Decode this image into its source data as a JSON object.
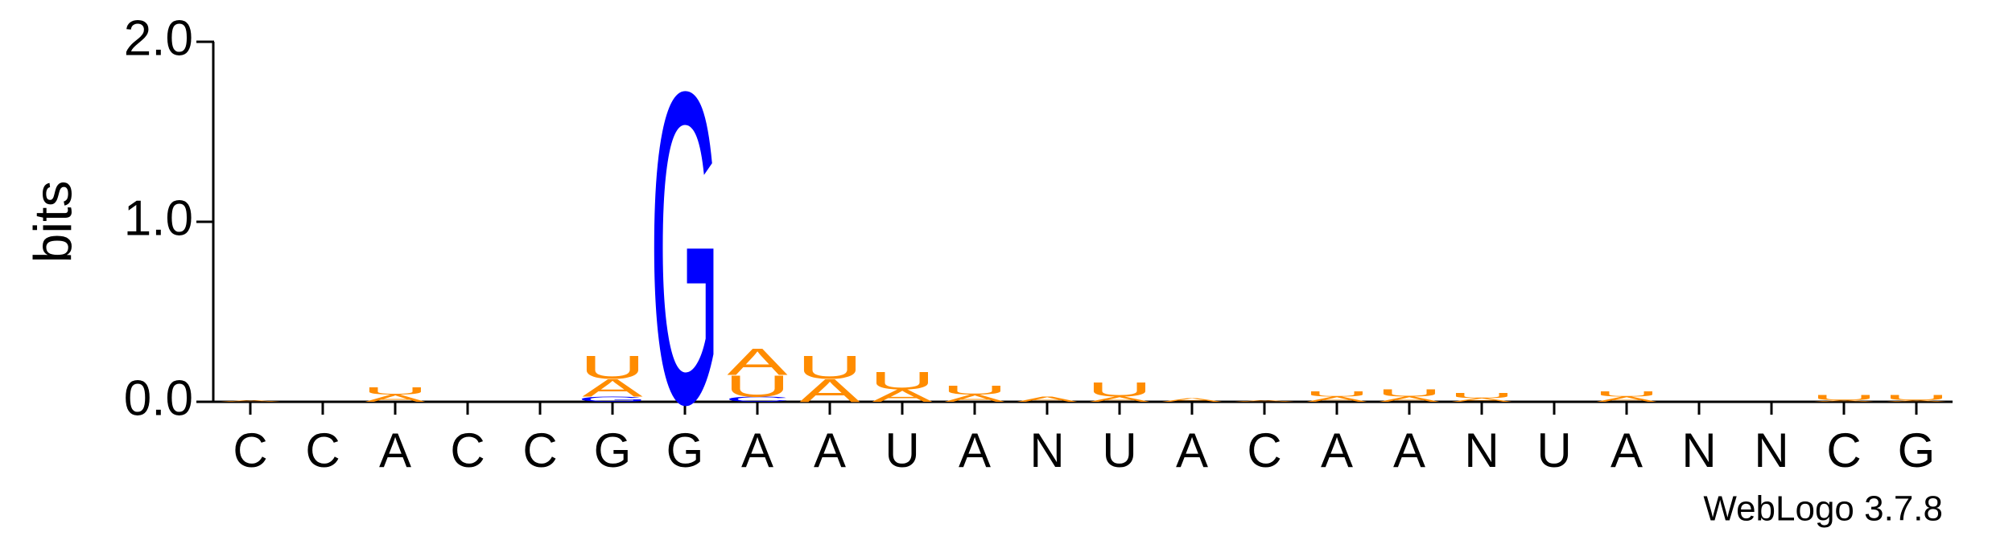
{
  "chart_data": {
    "type": "logo",
    "y_label": "bits",
    "footer": "WebLogo 3.7.8",
    "categories": [
      "C",
      "C",
      "A",
      "C",
      "C",
      "G",
      "G",
      "A",
      "A",
      "U",
      "A",
      "N",
      "U",
      "A",
      "C",
      "A",
      "A",
      "N",
      "U",
      "A",
      "N",
      "N",
      "C",
      "G"
    ],
    "series": [
      {
        "name": "A",
        "color": "#ff8c00",
        "values": [
          0.01,
          0,
          0.04,
          0,
          0,
          0.1,
          0,
          0.15,
          0.13,
          0.07,
          0.04,
          0.03,
          0.03,
          0.02,
          0.01,
          0.03,
          0.03,
          0.02,
          0,
          0.03,
          0,
          0,
          0.01,
          0.01
        ]
      },
      {
        "name": "C",
        "color": "#0000ff",
        "values": [
          0,
          0,
          0,
          0,
          0,
          0,
          0,
          0.03,
          0,
          0,
          0,
          0,
          0,
          0,
          0,
          0,
          0,
          0,
          0,
          0,
          0,
          0,
          0,
          0
        ]
      },
      {
        "name": "G",
        "color": "#0000ff",
        "values": [
          0,
          0,
          0,
          0,
          0,
          0.03,
          1.77,
          0,
          0,
          0,
          0,
          0,
          0,
          0,
          0,
          0,
          0,
          0,
          0,
          0,
          0,
          0,
          0,
          0
        ]
      },
      {
        "name": "U",
        "color": "#ff8c00",
        "values": [
          0,
          0,
          0.04,
          0,
          0,
          0.13,
          0,
          0.12,
          0.13,
          0.1,
          0.05,
          0,
          0.08,
          0,
          0,
          0.03,
          0.04,
          0.03,
          0,
          0.03,
          0,
          0,
          0.03,
          0.03
        ]
      }
    ],
    "ylim": [
      0,
      2.0
    ],
    "yticks": [
      {
        "value": 0,
        "label": "0.0"
      },
      {
        "value": 1,
        "label": "1.0"
      },
      {
        "value": 2,
        "label": "2.0"
      }
    ]
  }
}
